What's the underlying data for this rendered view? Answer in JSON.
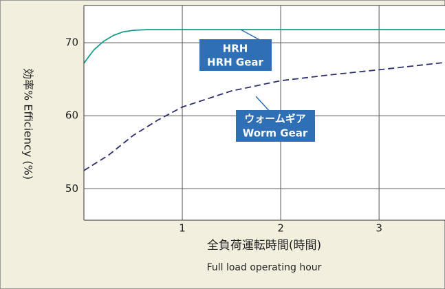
{
  "chart_data": {
    "type": "line",
    "ylabel": "効率% Efficiency (%)",
    "xlabel": "全負荷運転時間(時間)",
    "xlabel_en": "Full load operating hour",
    "xlim": [
      0,
      3.67
    ],
    "ylim": [
      45.7,
      75.1
    ],
    "xticks": [
      1,
      2,
      3
    ],
    "yticks": [
      50,
      60,
      70
    ],
    "grid": true,
    "series": [
      {
        "name": "HRH Gear",
        "name_ja": "HRH",
        "color": "#1a9a8c",
        "dashed": false,
        "x": [
          0,
          0.1,
          0.2,
          0.3,
          0.4,
          0.5,
          0.65,
          3.67
        ],
        "values": [
          67.2,
          69.0,
          70.2,
          71.0,
          71.5,
          71.7,
          71.8,
          71.8
        ]
      },
      {
        "name": "Worm Gear",
        "name_ja": "ウォームギア",
        "color": "#2b2f6e",
        "dashed": true,
        "x": [
          0,
          0.25,
          0.5,
          0.75,
          1,
          1.5,
          2,
          2.5,
          3,
          3.67
        ],
        "values": [
          52.5,
          54.6,
          57.3,
          59.4,
          61.2,
          63.4,
          64.8,
          65.6,
          66.3,
          67.3
        ]
      }
    ]
  }
}
